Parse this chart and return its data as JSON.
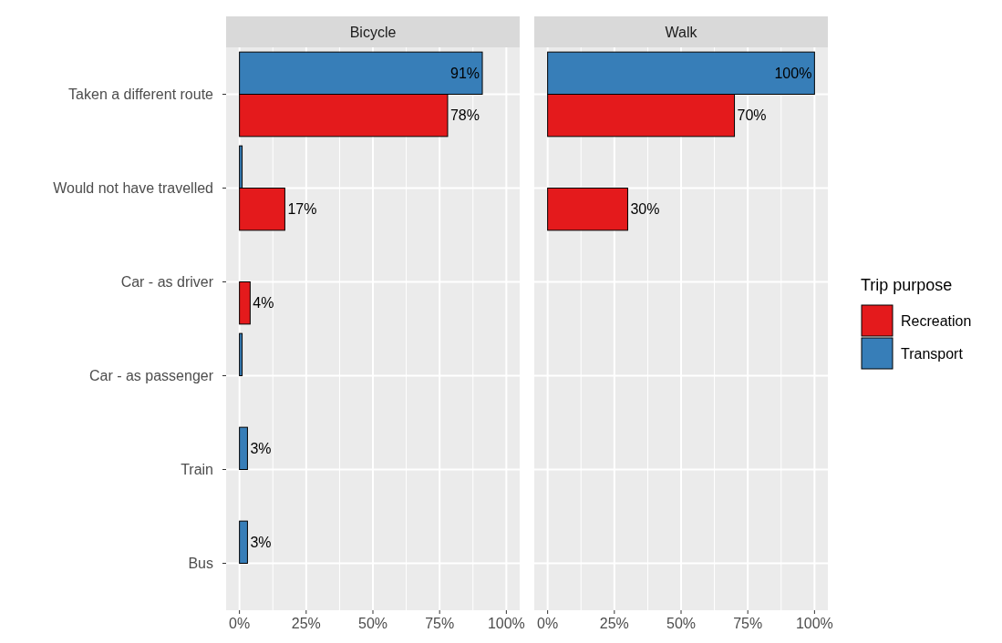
{
  "chart_data": [
    {
      "type": "bar",
      "orientation": "horizontal",
      "title": "Bicycle",
      "categories": [
        "Taken a different route",
        "Would not have travelled",
        "Car - as driver",
        "Car - as passenger",
        "Train",
        "Bus"
      ],
      "series": [
        {
          "color": "#e41a1c",
          "values": [
            78,
            17,
            4,
            0,
            0,
            0
          ],
          "value_labels": [
            "78%",
            "17%",
            "4%",
            null,
            null,
            null
          ]
        },
        {
          "color": "#377eb8",
          "values": [
            91,
            1,
            0,
            1,
            3,
            3
          ],
          "value_labels": [
            "91%",
            null,
            null,
            null,
            "3%",
            "3%"
          ]
        }
      ],
      "xlim": [
        -5,
        105
      ],
      "xticks": [
        {
          "value": 0,
          "label": "0%"
        },
        {
          "value": 25,
          "label": "25%"
        },
        {
          "value": 50,
          "label": "50%"
        },
        {
          "value": 75,
          "label": "75%"
        },
        {
          "value": 100,
          "label": "100%"
        }
      ],
      "grid": true,
      "legend": false
    },
    {
      "type": "bar",
      "orientation": "horizontal",
      "title": "Walk",
      "series": [
        {
          "name": "Recreation",
          "color": "#e41a1c",
          "values": [
            70,
            30,
            0,
            0,
            0,
            0
          ],
          "value_labels": [
            "70%",
            "30%",
            null,
            null,
            null,
            null
          ]
        },
        {
          "name": "Transport",
          "color": "#377eb8",
          "values": [
            100,
            0,
            0,
            0,
            0,
            0
          ],
          "value_labels": [
            "100%",
            null,
            null,
            null,
            null,
            null
          ]
        }
      ],
      "xlim": [
        -5,
        105
      ],
      "xticks": [
        {
          "value": 0,
          "label": "0%"
        },
        {
          "value": 25,
          "label": "25%"
        },
        {
          "value": 50,
          "label": "50%"
        },
        {
          "value": 75,
          "label": "75%"
        },
        {
          "value": 100,
          "label": "100%"
        }
      ],
      "grid": true,
      "legend": "right",
      "legend_title": "Trip purpose",
      "tick_labels": "x"
    }
  ]
}
